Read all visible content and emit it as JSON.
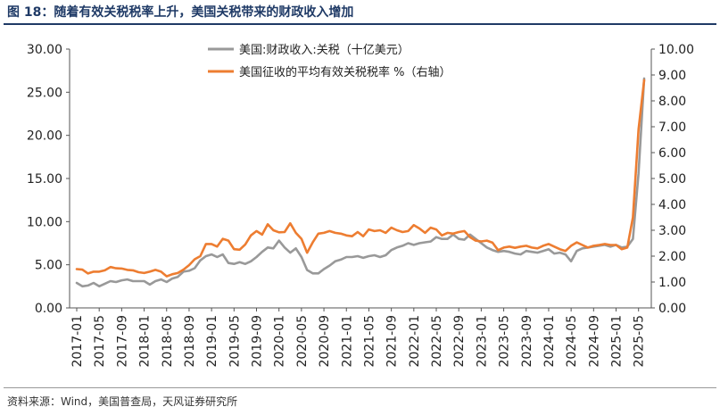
{
  "figure": {
    "title": "图 18：随着有效关税税率上升，美国关税带来的财政收入增加",
    "source": "资料来源：Wind，美国普查局，天风证券研究所"
  },
  "chart_data": {
    "type": "line",
    "title": "",
    "xlabel": "",
    "ylabel": "",
    "y2label": "",
    "ylim": [
      0,
      30
    ],
    "y2lim": [
      0,
      10
    ],
    "yticks": [
      "0.00",
      "5.00",
      "10.00",
      "15.00",
      "20.00",
      "25.00",
      "30.00"
    ],
    "y2ticks": [
      "0.00",
      "1.00",
      "2.00",
      "3.00",
      "4.00",
      "5.00",
      "6.00",
      "7.00",
      "8.00",
      "9.00",
      "10.00"
    ],
    "xticks": [
      "2017-01",
      "2017-05",
      "2017-09",
      "2018-01",
      "2018-05",
      "2018-09",
      "2019-01",
      "2019-05",
      "2019-09",
      "2020-01",
      "2020-05",
      "2020-09",
      "2021-01",
      "2021-05",
      "2021-09",
      "2022-01",
      "2022-05",
      "2022-09",
      "2023-01",
      "2023-05",
      "2023-09",
      "2024-01",
      "2024-05",
      "2024-09",
      "2025-01",
      "2025-05"
    ],
    "grid": false,
    "legend": "top-center",
    "x": [
      "2017-01",
      "2017-02",
      "2017-03",
      "2017-04",
      "2017-05",
      "2017-06",
      "2017-07",
      "2017-08",
      "2017-09",
      "2017-10",
      "2017-11",
      "2017-12",
      "2018-01",
      "2018-02",
      "2018-03",
      "2018-04",
      "2018-05",
      "2018-06",
      "2018-07",
      "2018-08",
      "2018-09",
      "2018-10",
      "2018-11",
      "2018-12",
      "2019-01",
      "2019-02",
      "2019-03",
      "2019-04",
      "2019-05",
      "2019-06",
      "2019-07",
      "2019-08",
      "2019-09",
      "2019-10",
      "2019-11",
      "2019-12",
      "2020-01",
      "2020-02",
      "2020-03",
      "2020-04",
      "2020-05",
      "2020-06",
      "2020-07",
      "2020-08",
      "2020-09",
      "2020-10",
      "2020-11",
      "2020-12",
      "2021-01",
      "2021-02",
      "2021-03",
      "2021-04",
      "2021-05",
      "2021-06",
      "2021-07",
      "2021-08",
      "2021-09",
      "2021-10",
      "2021-11",
      "2021-12",
      "2022-01",
      "2022-02",
      "2022-03",
      "2022-04",
      "2022-05",
      "2022-06",
      "2022-07",
      "2022-08",
      "2022-09",
      "2022-10",
      "2022-11",
      "2022-12",
      "2023-01",
      "2023-02",
      "2023-03",
      "2023-04",
      "2023-05",
      "2023-06",
      "2023-07",
      "2023-08",
      "2023-09",
      "2023-10",
      "2023-11",
      "2023-12",
      "2024-01",
      "2024-02",
      "2024-03",
      "2024-04",
      "2024-05",
      "2024-06",
      "2024-07",
      "2024-08",
      "2024-09",
      "2024-10",
      "2024-11",
      "2024-12",
      "2025-01",
      "2025-02",
      "2025-03",
      "2025-04",
      "2025-05",
      "2025-06"
    ],
    "series": [
      {
        "name": "美国:财政收入:关税（十亿美元）",
        "axis": "left",
        "color": "#999999",
        "values": [
          2.9,
          2.5,
          2.6,
          2.9,
          2.5,
          2.8,
          3.1,
          3.0,
          3.2,
          3.3,
          3.1,
          3.1,
          3.1,
          2.7,
          3.1,
          3.3,
          3.0,
          3.4,
          3.6,
          4.2,
          4.3,
          4.6,
          5.5,
          6.0,
          6.2,
          5.9,
          6.2,
          5.2,
          5.1,
          5.3,
          5.1,
          5.4,
          5.9,
          6.5,
          7.0,
          6.9,
          7.8,
          7.0,
          6.4,
          6.9,
          5.9,
          4.4,
          4.0,
          4.0,
          4.5,
          4.9,
          5.4,
          5.6,
          5.9,
          5.9,
          6.0,
          5.8,
          6.0,
          6.1,
          5.9,
          6.1,
          6.7,
          7.0,
          7.2,
          7.5,
          7.3,
          7.5,
          7.6,
          7.7,
          8.2,
          8.0,
          8.0,
          8.5,
          8.0,
          7.9,
          8.5,
          8.0,
          7.5,
          7.0,
          6.7,
          6.5,
          6.6,
          6.5,
          6.3,
          6.2,
          6.6,
          6.5,
          6.4,
          6.6,
          6.8,
          6.3,
          6.4,
          6.2,
          5.4,
          6.6,
          6.9,
          7.0,
          7.1,
          7.2,
          7.3,
          7.1,
          7.3,
          7.0,
          7.1,
          8.0,
          15.6,
          26.6
        ]
      },
      {
        "name": "美国征收的平均有效关税税率 %（右轴）",
        "axis": "right",
        "color": "#ed7d31",
        "values": [
          1.5,
          1.48,
          1.33,
          1.4,
          1.4,
          1.45,
          1.58,
          1.53,
          1.52,
          1.47,
          1.45,
          1.38,
          1.35,
          1.4,
          1.47,
          1.4,
          1.22,
          1.3,
          1.35,
          1.48,
          1.65,
          1.88,
          2.0,
          2.47,
          2.47,
          2.37,
          2.67,
          2.6,
          2.27,
          2.25,
          2.45,
          2.8,
          2.97,
          2.83,
          3.23,
          3.0,
          2.92,
          2.93,
          3.27,
          2.9,
          2.67,
          2.13,
          2.53,
          2.87,
          2.9,
          2.97,
          2.9,
          2.87,
          2.8,
          2.77,
          2.93,
          2.77,
          3.03,
          2.97,
          3.0,
          2.9,
          3.1,
          3.0,
          2.93,
          2.97,
          3.2,
          3.07,
          2.9,
          3.1,
          3.03,
          2.8,
          2.9,
          2.87,
          2.93,
          2.97,
          2.73,
          2.6,
          2.57,
          2.6,
          2.52,
          2.23,
          2.33,
          2.37,
          2.32,
          2.37,
          2.4,
          2.33,
          2.3,
          2.4,
          2.47,
          2.37,
          2.27,
          2.2,
          2.4,
          2.53,
          2.43,
          2.33,
          2.4,
          2.43,
          2.47,
          2.43,
          2.43,
          2.27,
          2.33,
          3.5,
          6.9,
          8.8
        ]
      }
    ]
  }
}
